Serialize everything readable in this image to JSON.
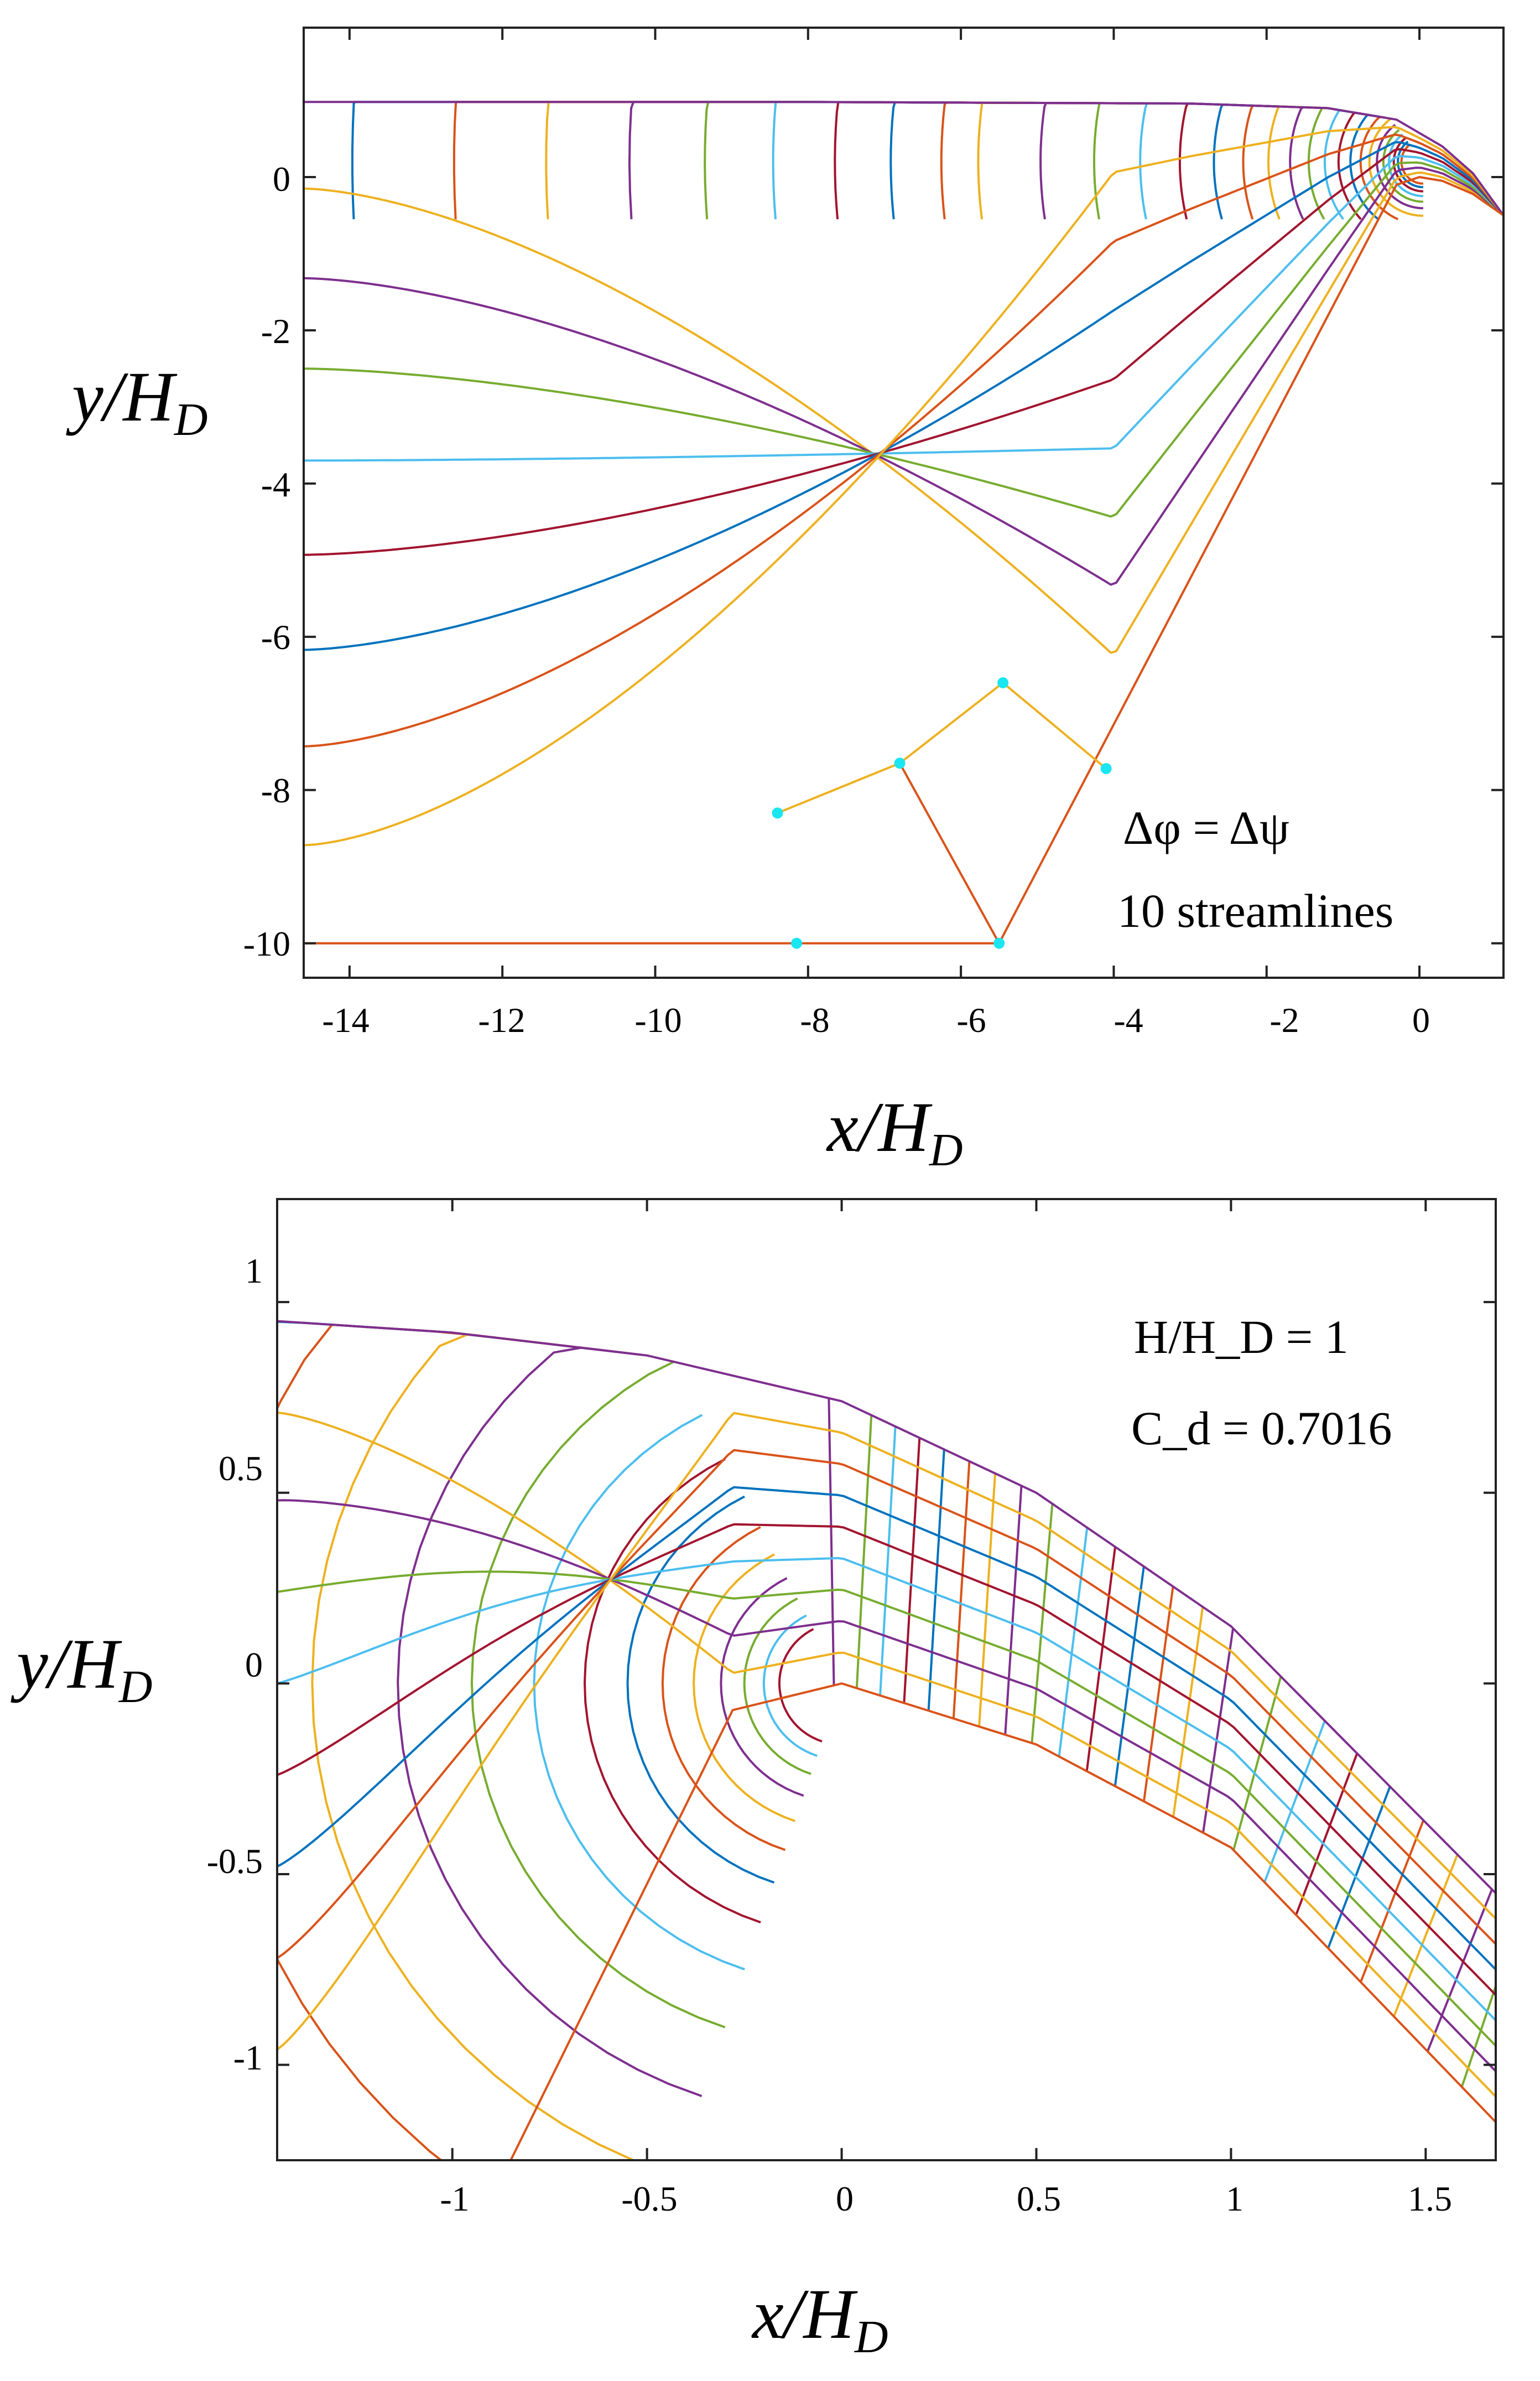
{
  "colors": [
    "#0072BD",
    "#D95319",
    "#EDB120",
    "#7E2F8E",
    "#77AC30",
    "#4DBEEE",
    "#A2142F"
  ],
  "marker_color": "#19E6F0",
  "chart_data": [
    {
      "type": "line",
      "description": "flow net (equipotential lines and streamlines) upstream of a weir crest",
      "xlabel": "x/H_D",
      "ylabel": "y/H_D",
      "xlim": [
        -14.6,
        1.1
      ],
      "ylim": [
        -10.45,
        1.95
      ],
      "xticks": [
        "-14",
        "-12",
        "-10",
        "-8",
        "-6",
        "-4",
        "-2",
        "0"
      ],
      "yticks": [
        "0",
        "-2",
        "-4",
        "-6",
        "-8",
        "-10"
      ],
      "xtick_values": [
        -14,
        -12,
        -10,
        -8,
        -6,
        -4,
        -2,
        0
      ],
      "ytick_values": [
        0,
        -2,
        -4,
        -6,
        -8,
        -10
      ],
      "annotation_lines": [
        "Δφ = Δψ",
        "10 streamlines"
      ],
      "streamlines": 10,
      "free_surface": [
        [
          -14.6,
          0.98
        ],
        [
          -8,
          0.98
        ],
        [
          -3,
          0.96
        ],
        [
          -1.2,
          0.9
        ],
        [
          -0.3,
          0.75
        ],
        [
          0.3,
          0.4
        ],
        [
          0.7,
          0.05
        ],
        [
          1.1,
          -0.5
        ]
      ],
      "crest_profile": [
        [
          -5.5,
          -10
        ],
        [
          -0.3,
          -0.1
        ],
        [
          0,
          0
        ],
        [
          0.3,
          -0.05
        ],
        [
          0.7,
          -0.22
        ],
        [
          1.1,
          -0.5
        ]
      ],
      "bottom_boundary": [
        [
          -14.6,
          -10
        ],
        [
          -5.5,
          -10
        ]
      ],
      "left_boundary_y": [
        0.98,
        -0.15,
        -1.32,
        -2.5,
        -3.7,
        -4.93,
        -6.17,
        -7.43,
        -8.72
      ],
      "marker_points": [
        [
          -8.15,
          -10
        ],
        [
          -8.4,
          -8.3
        ],
        [
          -6.8,
          -7.65
        ],
        [
          -5.45,
          -6.6
        ],
        [
          -4.1,
          -7.72
        ],
        [
          -5.5,
          -10
        ]
      ]
    },
    {
      "type": "line",
      "description": "zoomed flow net near the weir crest",
      "xlabel": "x/H_D",
      "ylabel": "y/H_D",
      "xlim": [
        -1.45,
        1.68
      ],
      "ylim": [
        -1.25,
        1.27
      ],
      "xticks": [
        "-1",
        "-0.5",
        "0",
        "0.5",
        "1",
        "1.5"
      ],
      "yticks": [
        "1",
        "0.5",
        "0",
        "-0.5",
        "-1"
      ],
      "xtick_values": [
        -1,
        -0.5,
        0,
        0.5,
        1,
        1.5
      ],
      "ytick_values": [
        1,
        0.5,
        0,
        -0.5,
        -1
      ],
      "annotation_lines": [
        "H/H_D = 1",
        "C_d = 0.7016"
      ],
      "H_over_HD": 1,
      "Cd": 0.7016,
      "free_surface": [
        [
          -1.45,
          0.95
        ],
        [
          -1.0,
          0.92
        ],
        [
          -0.5,
          0.86
        ],
        [
          0,
          0.74
        ],
        [
          0.5,
          0.5
        ],
        [
          1.0,
          0.15
        ],
        [
          1.68,
          -0.55
        ]
      ],
      "crest_profile": [
        [
          -0.85,
          -1.25
        ],
        [
          -0.28,
          -0.07
        ],
        [
          0,
          0
        ],
        [
          0.5,
          -0.16
        ],
        [
          1.0,
          -0.43
        ],
        [
          1.68,
          -1.15
        ]
      ],
      "left_boundary_y": [
        0.95,
        0.71,
        0.48,
        0.24,
        0.0,
        -0.24,
        -0.48,
        -0.72,
        -0.96
      ]
    }
  ]
}
